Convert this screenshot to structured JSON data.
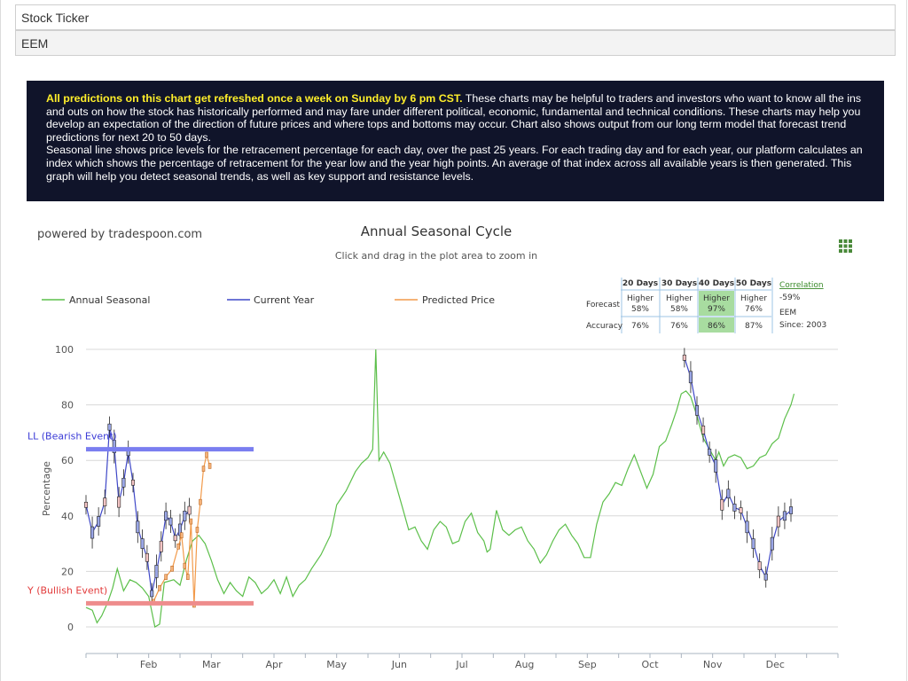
{
  "header": {
    "ticker_label": "Stock Ticker",
    "ticker_value": "EEM"
  },
  "info": {
    "highlight": "All predictions on this chart get refreshed once a week on Sunday by 6 pm CST.",
    "paragraph1": " These charts may be helpful to traders and investors who want to know all the ins and outs on how the stock has historically performed and may fare under different political, economic, fundamental and technical conditions. These charts may help you develop an expectation of the direction of future prices and where tops and bottoms may occur. Chart also shows output from our long term model that forecast trend predictions for next 20 to 50 days.",
    "paragraph2": "Seasonal line shows price levels for the retracement percentage for each day, over the past 25 years. For each trading day and for each year, our platform calculates an index which shows the percentage of retracement for the year low and the year high points. An average of that index across all available years is then generated. This graph will help you detect seasonal trends, as well as key support and resistance levels."
  },
  "chart_data": {
    "type": "line",
    "powered_by": "powered by tradespoon.com",
    "title": "Annual Seasonal Cycle",
    "subtitle": "Click and drag in the plot area to zoom in",
    "ylabel": "Percentage",
    "ylim": [
      0,
      100
    ],
    "yticks": [
      0,
      20,
      40,
      60,
      80,
      100
    ],
    "xticks": [
      "Feb",
      "Mar",
      "Apr",
      "May",
      "Jun",
      "Jul",
      "Aug",
      "Sep",
      "Oct",
      "Nov",
      "Dec"
    ],
    "grid": true,
    "legend": [
      "Annual Seasonal",
      "Current Year",
      "Predicted Price"
    ],
    "colors": {
      "annual": "#5cbf4a",
      "current": "#3f48c8",
      "predicted": "#f29a4a",
      "bearish": "#7a7ef0",
      "bullish": "#ee8c8c",
      "bearish_text": "#3b3bd6",
      "bullish_text": "#e23b3b",
      "highlight_cell": "#a8dca0"
    },
    "annotations": {
      "bearish_label": "LL (Bearish Event)",
      "bearish_level": 64,
      "bullish_label": "Y (Bullish Event)",
      "bullish_level": 8.5
    },
    "forecast_table": {
      "headers": [
        "20 Days",
        "30 Days",
        "40 Days",
        "50 Days"
      ],
      "row_forecast_label": "Forecast",
      "row_accuracy_label": "Accuracy",
      "forecast_dir": [
        "Higher",
        "Higher",
        "Higher",
        "Higher"
      ],
      "forecast_pct": [
        "58%",
        "58%",
        "97%",
        "76%"
      ],
      "accuracy": [
        "76%",
        "76%",
        "86%",
        "87%"
      ],
      "highlight_index": 2,
      "correlation_label": "Correlation",
      "correlation_value": "-59%",
      "symbol": "EEM",
      "since": "Since: 2003"
    },
    "annual_seasonal": [
      [
        0,
        7
      ],
      [
        0.2,
        6
      ],
      [
        0.35,
        1.5
      ],
      [
        0.5,
        4
      ],
      [
        0.7,
        9
      ],
      [
        0.85,
        14
      ],
      [
        1,
        21
      ],
      [
        1.2,
        13
      ],
      [
        1.4,
        17
      ],
      [
        1.6,
        16
      ],
      [
        1.8,
        14
      ],
      [
        2,
        11
      ],
      [
        2.2,
        0
      ],
      [
        2.35,
        1
      ],
      [
        2.5,
        16
      ],
      [
        2.8,
        17
      ],
      [
        3,
        15
      ],
      [
        3.2,
        24
      ],
      [
        3.4,
        31
      ],
      [
        3.6,
        33
      ],
      [
        3.8,
        30
      ],
      [
        4,
        24
      ],
      [
        4.2,
        17
      ],
      [
        4.4,
        12
      ],
      [
        4.6,
        16
      ],
      [
        4.8,
        13
      ],
      [
        5,
        11
      ],
      [
        5.2,
        18
      ],
      [
        5.4,
        16
      ],
      [
        5.6,
        12
      ],
      [
        5.8,
        14
      ],
      [
        6,
        17
      ],
      [
        6.2,
        12
      ],
      [
        6.4,
        18
      ],
      [
        6.6,
        11
      ],
      [
        6.8,
        15
      ],
      [
        7,
        17
      ],
      [
        7.2,
        21
      ],
      [
        7.5,
        26
      ],
      [
        7.8,
        33
      ],
      [
        8,
        44
      ],
      [
        8.3,
        49
      ],
      [
        8.6,
        56
      ],
      [
        8.8,
        59
      ],
      [
        9,
        61
      ],
      [
        9.15,
        64
      ],
      [
        9.25,
        100
      ],
      [
        9.35,
        60
      ],
      [
        9.5,
        63
      ],
      [
        9.7,
        59
      ],
      [
        9.9,
        51
      ],
      [
        10.1,
        43
      ],
      [
        10.3,
        35
      ],
      [
        10.5,
        36
      ],
      [
        10.7,
        31
      ],
      [
        10.9,
        28
      ],
      [
        11.1,
        35
      ],
      [
        11.3,
        38
      ],
      [
        11.5,
        36
      ],
      [
        11.7,
        30
      ],
      [
        11.9,
        31
      ],
      [
        12.1,
        38
      ],
      [
        12.3,
        41
      ],
      [
        12.5,
        34
      ],
      [
        12.7,
        31
      ],
      [
        12.8,
        27
      ],
      [
        12.9,
        28
      ],
      [
        13.1,
        42
      ],
      [
        13.3,
        35
      ],
      [
        13.5,
        33
      ],
      [
        13.7,
        35
      ],
      [
        13.9,
        36
      ],
      [
        14.1,
        31
      ],
      [
        14.3,
        28
      ],
      [
        14.5,
        23
      ],
      [
        14.7,
        26
      ],
      [
        14.9,
        31
      ],
      [
        15.1,
        35
      ],
      [
        15.3,
        37
      ],
      [
        15.5,
        33
      ],
      [
        15.7,
        30
      ],
      [
        15.9,
        25
      ],
      [
        16.1,
        25
      ],
      [
        16.3,
        37
      ],
      [
        16.5,
        45
      ],
      [
        16.7,
        48
      ],
      [
        16.9,
        52
      ],
      [
        17.1,
        51
      ],
      [
        17.3,
        57
      ],
      [
        17.5,
        62
      ],
      [
        17.7,
        56
      ],
      [
        17.9,
        50
      ],
      [
        18.1,
        55
      ],
      [
        18.3,
        65
      ],
      [
        18.5,
        67
      ],
      [
        18.7,
        73
      ],
      [
        18.85,
        78
      ],
      [
        19,
        84
      ],
      [
        19.15,
        85
      ],
      [
        19.3,
        83
      ],
      [
        19.5,
        76
      ],
      [
        19.7,
        68
      ],
      [
        19.9,
        64
      ],
      [
        20.1,
        60
      ],
      [
        20.2,
        63
      ],
      [
        20.35,
        58
      ],
      [
        20.5,
        61
      ],
      [
        20.7,
        62
      ],
      [
        20.9,
        61
      ],
      [
        21.1,
        57
      ],
      [
        21.3,
        58
      ],
      [
        21.5,
        61
      ],
      [
        21.7,
        62
      ],
      [
        21.9,
        66
      ],
      [
        22.1,
        68
      ],
      [
        22.3,
        75
      ],
      [
        22.5,
        80
      ],
      [
        22.6,
        84
      ]
    ],
    "current_year": [
      [
        0,
        44
      ],
      [
        0.2,
        34
      ],
      [
        0.4,
        38
      ],
      [
        0.6,
        45
      ],
      [
        0.75,
        72
      ],
      [
        0.9,
        65
      ],
      [
        1.05,
        45
      ],
      [
        1.2,
        52
      ],
      [
        1.35,
        63
      ],
      [
        1.5,
        52
      ],
      [
        1.65,
        36
      ],
      [
        1.8,
        30
      ],
      [
        1.95,
        25
      ],
      [
        2.1,
        12
      ],
      [
        2.25,
        20
      ],
      [
        2.4,
        29
      ],
      [
        2.55,
        40
      ],
      [
        2.7,
        38
      ],
      [
        2.85,
        32
      ],
      [
        3,
        35
      ],
      [
        3.15,
        40
      ],
      [
        3.3,
        42
      ],
      [
        19.1,
        97
      ],
      [
        19.3,
        90
      ],
      [
        19.5,
        78
      ],
      [
        19.7,
        71
      ],
      [
        19.9,
        63
      ],
      [
        20.1,
        58
      ],
      [
        20.3,
        44
      ],
      [
        20.5,
        48
      ],
      [
        20.7,
        43
      ],
      [
        20.9,
        42
      ],
      [
        21.1,
        36
      ],
      [
        21.3,
        30
      ],
      [
        21.5,
        22
      ],
      [
        21.7,
        18
      ],
      [
        21.9,
        30
      ],
      [
        22.1,
        38
      ],
      [
        22.3,
        40
      ],
      [
        22.5,
        42
      ]
    ],
    "predicted_price": [
      [
        2.15,
        9
      ],
      [
        2.35,
        14
      ],
      [
        2.55,
        18
      ],
      [
        2.75,
        21
      ],
      [
        2.95,
        29
      ],
      [
        3.05,
        33
      ],
      [
        3.15,
        22
      ],
      [
        3.25,
        18
      ],
      [
        3.35,
        38
      ],
      [
        3.45,
        8
      ],
      [
        3.55,
        35
      ],
      [
        3.65,
        45
      ],
      [
        3.75,
        57
      ],
      [
        3.85,
        62
      ],
      [
        3.95,
        58
      ]
    ]
  }
}
